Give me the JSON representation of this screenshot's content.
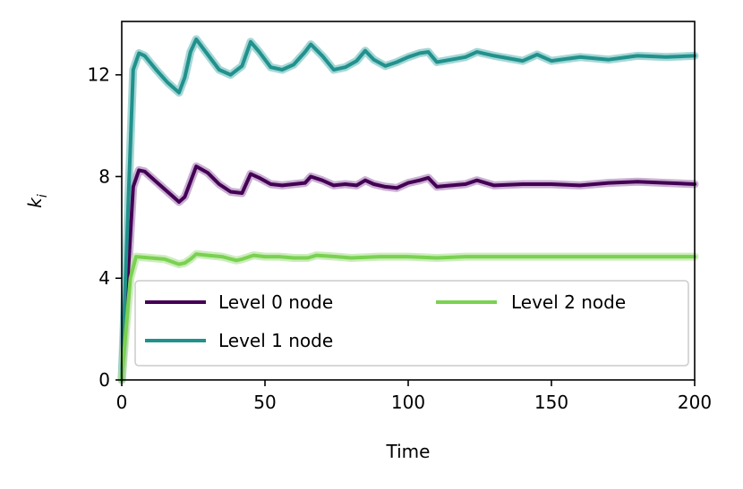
{
  "chart_data": {
    "type": "line",
    "title": "",
    "xlabel": "Time",
    "ylabel": "k_i",
    "ylabel_main": "k",
    "ylabel_sub": "i",
    "xlim": [
      0,
      200
    ],
    "ylim": [
      0,
      14.1
    ],
    "xticks": [
      0,
      50,
      100,
      150,
      200
    ],
    "yticks": [
      0,
      4,
      8,
      12
    ],
    "grid": false,
    "legend": {
      "placement": "lower-right",
      "ncols": 2
    },
    "series": [
      {
        "name": "Level 0 node",
        "color": "#440154",
        "band_color": "#b48ec0",
        "x": [
          0,
          4,
          6,
          8,
          12,
          16,
          20,
          22,
          24,
          26,
          30,
          34,
          38,
          42,
          45,
          48,
          52,
          56,
          60,
          64,
          66,
          70,
          74,
          78,
          82,
          85,
          88,
          92,
          96,
          100,
          104,
          107,
          110,
          115,
          120,
          124,
          130,
          140,
          150,
          160,
          170,
          180,
          190,
          200
        ],
        "y": [
          0,
          7.6,
          8.25,
          8.2,
          7.8,
          7.4,
          7.0,
          7.2,
          7.8,
          8.4,
          8.15,
          7.7,
          7.4,
          7.35,
          8.1,
          7.95,
          7.7,
          7.65,
          7.7,
          7.75,
          8.0,
          7.85,
          7.65,
          7.7,
          7.65,
          7.85,
          7.7,
          7.6,
          7.55,
          7.75,
          7.85,
          7.95,
          7.6,
          7.65,
          7.7,
          7.85,
          7.65,
          7.7,
          7.7,
          7.65,
          7.75,
          7.8,
          7.75,
          7.7
        ]
      },
      {
        "name": "Level 1 node",
        "color": "#21918c",
        "band_color": "#7fc6c4",
        "x": [
          0,
          4,
          6,
          8,
          12,
          16,
          20,
          22,
          24,
          26,
          30,
          34,
          38,
          42,
          45,
          48,
          52,
          56,
          60,
          64,
          66,
          70,
          74,
          78,
          82,
          85,
          88,
          92,
          96,
          100,
          104,
          107,
          110,
          115,
          120,
          124,
          130,
          140,
          145,
          150,
          160,
          170,
          180,
          190,
          200
        ],
        "y": [
          0,
          12.2,
          12.85,
          12.75,
          12.2,
          11.7,
          11.3,
          11.9,
          12.9,
          13.4,
          12.8,
          12.2,
          12.0,
          12.35,
          13.3,
          12.9,
          12.3,
          12.2,
          12.4,
          12.9,
          13.2,
          12.75,
          12.2,
          12.3,
          12.55,
          12.95,
          12.6,
          12.35,
          12.5,
          12.7,
          12.85,
          12.9,
          12.5,
          12.6,
          12.7,
          12.9,
          12.75,
          12.55,
          12.8,
          12.55,
          12.7,
          12.6,
          12.75,
          12.7,
          12.75
        ]
      },
      {
        "name": "Level 2 node",
        "color": "#7ad151",
        "band_color": "#b8e6a0",
        "x": [
          0,
          3,
          5,
          10,
          15,
          20,
          22,
          24,
          26,
          30,
          35,
          40,
          42,
          46,
          50,
          55,
          60,
          65,
          68,
          75,
          80,
          90,
          100,
          110,
          120,
          130,
          140,
          150,
          160,
          170,
          180,
          190,
          200
        ],
        "y": [
          0,
          4.0,
          4.85,
          4.8,
          4.75,
          4.55,
          4.6,
          4.75,
          4.95,
          4.9,
          4.85,
          4.7,
          4.75,
          4.9,
          4.85,
          4.85,
          4.8,
          4.8,
          4.9,
          4.85,
          4.8,
          4.85,
          4.85,
          4.8,
          4.85,
          4.85,
          4.85,
          4.85,
          4.85,
          4.85,
          4.85,
          4.85,
          4.85
        ]
      }
    ]
  }
}
